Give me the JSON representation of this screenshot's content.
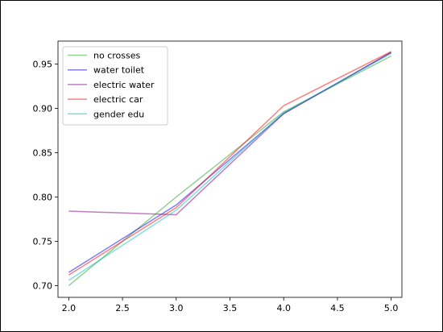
{
  "chart_data": {
    "type": "line",
    "title": "",
    "xlabel": "",
    "ylabel": "",
    "x": [
      2.0,
      3.0,
      4.0,
      5.0
    ],
    "xlim": [
      1.9,
      5.1
    ],
    "ylim": [
      0.6868,
      0.9758
    ],
    "xticks": [
      2.0,
      2.5,
      3.0,
      3.5,
      4.0,
      4.5,
      5.0
    ],
    "xtick_labels": [
      "2.0",
      "2.5",
      "3.0",
      "3.5",
      "4.0",
      "4.5",
      "5.0"
    ],
    "yticks": [
      0.7,
      0.75,
      0.8,
      0.85,
      0.9,
      0.95
    ],
    "ytick_labels": [
      "0.70",
      "0.75",
      "0.80",
      "0.85",
      "0.90",
      "0.95"
    ],
    "grid": false,
    "legend_position": "top-left",
    "series": [
      {
        "name": "no crosses",
        "color": "#2ca02c",
        "values": [
          0.7,
          0.8,
          0.896,
          0.959
        ]
      },
      {
        "name": "water toilet",
        "color": "#0000ff",
        "values": [
          0.715,
          0.791,
          0.894,
          0.963
        ]
      },
      {
        "name": "electric water",
        "color": "#800080",
        "values": [
          0.784,
          0.78,
          0.894,
          0.963
        ]
      },
      {
        "name": "electric car",
        "color": "#ff0000",
        "values": [
          0.712,
          0.788,
          0.903,
          0.964
        ]
      },
      {
        "name": "gender edu",
        "color": "#00c0c0",
        "values": [
          0.706,
          0.785,
          0.895,
          0.962
        ]
      }
    ]
  }
}
